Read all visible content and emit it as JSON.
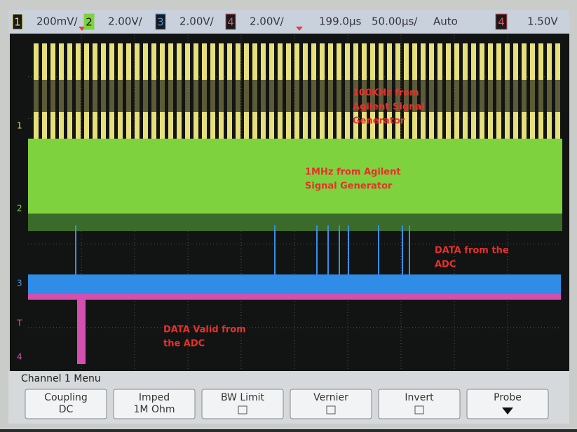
{
  "status_bar": {
    "channels": [
      {
        "number": "1",
        "scale": "200mV/"
      },
      {
        "number": "2",
        "scale": "2.00V/"
      },
      {
        "number": "3",
        "scale": "2.00V/"
      },
      {
        "number": "4",
        "scale": "2.00V/"
      }
    ],
    "delay": "199.0µs",
    "timebase": "50.00µs/",
    "mode": "Auto",
    "trigger_source": "4",
    "trigger_level": "1.50V"
  },
  "channel_markers": [
    "1",
    "2",
    "3",
    "T",
    "4"
  ],
  "annotations": [
    {
      "lines": [
        "100KHz from",
        "Agilent Signal",
        "Generator"
      ]
    },
    {
      "lines": [
        "1MHz from Agilent",
        "Signal Generator"
      ]
    },
    {
      "lines": [
        "DATA from the",
        "ADC"
      ]
    },
    {
      "lines": [
        "DATA Valid from",
        "the ADC"
      ]
    }
  ],
  "menu": {
    "title": "Channel 1  Menu",
    "softkeys": [
      {
        "label": "Coupling",
        "value": "DC"
      },
      {
        "label": "Imped",
        "value": "1M Ohm"
      },
      {
        "label": "BW Limit"
      },
      {
        "label": "Vernier"
      },
      {
        "label": "Invert"
      },
      {
        "label": "Probe"
      }
    ]
  }
}
